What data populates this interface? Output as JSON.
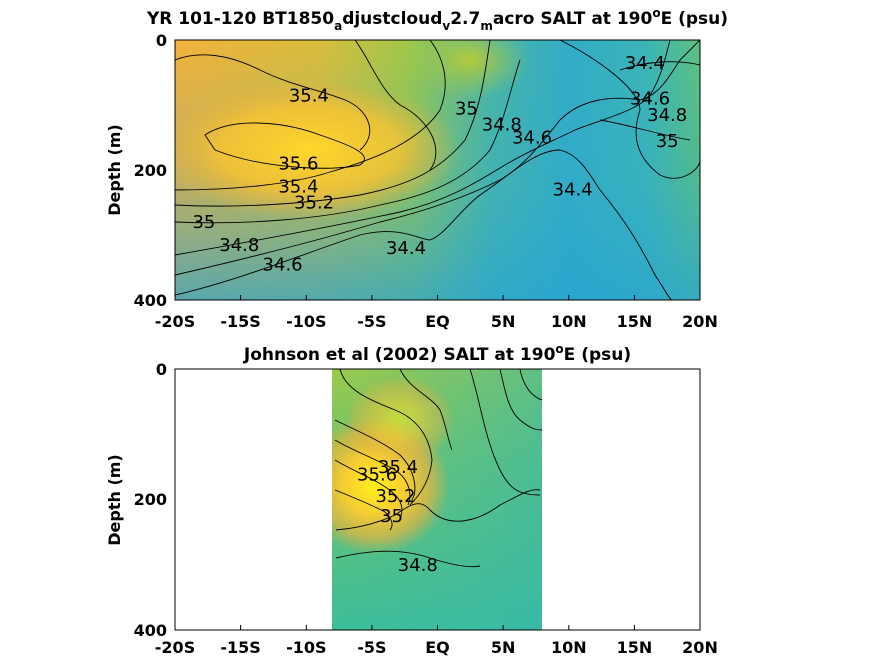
{
  "chart_data": [
    {
      "type": "heatmap",
      "title_parts": [
        "YR 101-120 BT1850",
        "a",
        "djustcloud",
        "v",
        "2.7",
        "m",
        "acro SALT at 190",
        "o",
        "E (psu)"
      ],
      "ylabel": "Depth (m)",
      "x_ticks": [
        "-20S",
        "-15S",
        "-10S",
        "-5S",
        "EQ",
        "5N",
        "10N",
        "15N",
        "20N"
      ],
      "y_ticks": [
        "0",
        "200",
        "400"
      ],
      "xlim": [
        -20,
        20
      ],
      "ylim": [
        0,
        400
      ],
      "y_reversed": true,
      "data_extent": [
        -20,
        20
      ],
      "contour_labels": [
        {
          "text": "34.4",
          "lat": 15.8,
          "depth": 35
        },
        {
          "text": "35.4",
          "lat": -9.8,
          "depth": 85
        },
        {
          "text": "34.6",
          "lat": 16.2,
          "depth": 90
        },
        {
          "text": "35",
          "lat": 2.2,
          "depth": 105
        },
        {
          "text": "34.8",
          "lat": 17.5,
          "depth": 115
        },
        {
          "text": "34.8",
          "lat": 4.9,
          "depth": 130
        },
        {
          "text": "34.6",
          "lat": 7.2,
          "depth": 150
        },
        {
          "text": "35",
          "lat": 17.5,
          "depth": 155
        },
        {
          "text": "35.6",
          "lat": -10.6,
          "depth": 190
        },
        {
          "text": "34.4",
          "lat": 10.3,
          "depth": 230
        },
        {
          "text": "35.4",
          "lat": -10.6,
          "depth": 225
        },
        {
          "text": "35.2",
          "lat": -9.4,
          "depth": 250
        },
        {
          "text": "35",
          "lat": -17.8,
          "depth": 280
        },
        {
          "text": "34.8",
          "lat": -15.1,
          "depth": 315
        },
        {
          "text": "34.4",
          "lat": -2.4,
          "depth": 320
        },
        {
          "text": "34.6",
          "lat": -11.8,
          "depth": 345
        }
      ]
    },
    {
      "type": "heatmap",
      "title_parts": [
        "Johnson et al (2002) SALT at 190",
        "o",
        "E (psu)"
      ],
      "ylabel": "Depth (m)",
      "x_ticks": [
        "-20S",
        "-15S",
        "-10S",
        "-5S",
        "EQ",
        "5N",
        "10N",
        "15N",
        "20N"
      ],
      "y_ticks": [
        "0",
        "200",
        "400"
      ],
      "xlim": [
        -20,
        20
      ],
      "ylim": [
        0,
        400
      ],
      "y_reversed": true,
      "data_extent": [
        -8,
        8
      ],
      "contour_labels": [
        {
          "text": "35.4",
          "lat": -3.0,
          "depth": 150
        },
        {
          "text": "35.6",
          "lat": -4.6,
          "depth": 162
        },
        {
          "text": "35.2",
          "lat": -3.2,
          "depth": 195
        },
        {
          "text": "35",
          "lat": -3.5,
          "depth": 225
        },
        {
          "text": "34.8",
          "lat": -1.5,
          "depth": 300
        }
      ]
    }
  ]
}
